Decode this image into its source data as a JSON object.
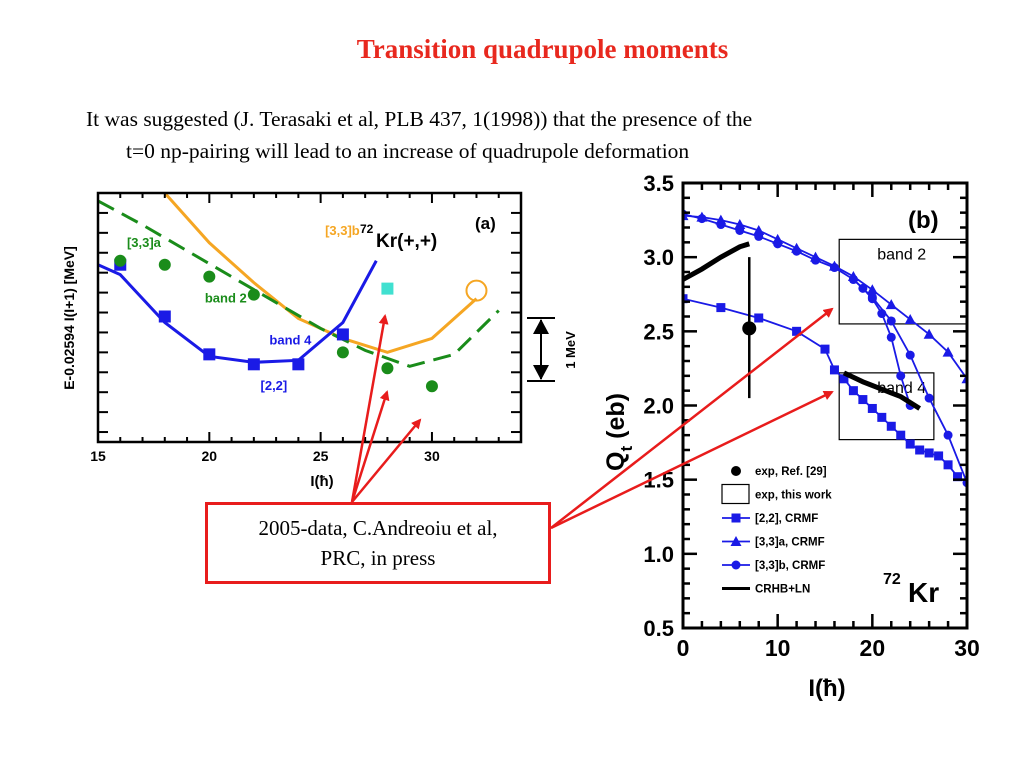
{
  "slide": {
    "title": "Transition quadrupole moments",
    "intro_line1": "It was suggested (J. Terasaki et al, PLB 437, 1(1998)) that the presence of the",
    "intro_line2": "t=0 np-pairing will lead to  an increase of quadrupole deformation",
    "callout_line1": "2005-data, C.Andreoiu et al,",
    "callout_line2": "PRC, in press",
    "arrow_color": "#e81c1c"
  },
  "chart_data": [
    {
      "type": "line",
      "panel_label": "(a)",
      "nucleus_mass": "72",
      "nucleus_label": "Kr(+,+)",
      "xlabel": "I(ħ)",
      "ylabel": "E-0.02594 I(I+1) [MeV]",
      "xlim": [
        15,
        34
      ],
      "ylim": [
        0,
        1.25
      ],
      "xticks": [
        15,
        20,
        25,
        30
      ],
      "scale_bar_label": "1 MeV",
      "scale_bar_mev": 1,
      "colors": {
        "blue": "#1a1ae6",
        "green": "#1a8c1a",
        "orange": "#f5a623",
        "cyan": "#40e0d0"
      },
      "series": [
        {
          "name": "[3,3]b",
          "style": "solid",
          "color": "#f5a623",
          "x": [
            18,
            20,
            22,
            24,
            26,
            28,
            30,
            32
          ],
          "y": [
            1.25,
            1.0,
            0.8,
            0.62,
            0.52,
            0.45,
            0.52,
            0.72
          ]
        },
        {
          "name": "[3,3]a",
          "style": "dashed",
          "color": "#1a8c1a",
          "x": [
            15,
            17,
            19,
            21,
            23,
            25,
            27,
            29,
            31,
            33
          ],
          "y": [
            1.21,
            1.09,
            0.96,
            0.83,
            0.7,
            0.57,
            0.46,
            0.38,
            0.44,
            0.66
          ]
        },
        {
          "name": "band 4",
          "style": "solid",
          "color": "#1a1ae6",
          "x": [
            15,
            16,
            18,
            20,
            22,
            24,
            26,
            27.5
          ],
          "y": [
            0.89,
            0.84,
            0.6,
            0.43,
            0.4,
            0.41,
            0.6,
            0.91
          ]
        },
        {
          "name": "[2,2] points",
          "style": "square",
          "color": "#1a1ae6",
          "x": [
            16,
            18,
            20,
            22,
            24,
            26
          ],
          "y": [
            0.89,
            0.63,
            0.44,
            0.39,
            0.39,
            0.54
          ]
        },
        {
          "name": "band 2 points",
          "style": "circle",
          "color": "#1a8c1a",
          "x": [
            16,
            18,
            20,
            22,
            26,
            28,
            30
          ],
          "y": [
            0.91,
            0.89,
            0.83,
            0.74,
            0.45,
            0.37,
            0.28
          ]
        },
        {
          "name": "cyan square",
          "style": "square",
          "color": "#40e0d0",
          "x": [
            28
          ],
          "y": [
            0.77
          ]
        },
        {
          "name": "open circle",
          "style": "open-circle",
          "color": "#f5a623",
          "x": [
            32
          ],
          "y": [
            0.76
          ]
        }
      ],
      "annotations": [
        {
          "text": "[3,3]a",
          "color": "#1a8c1a",
          "x": 16.3,
          "y": 0.98
        },
        {
          "text": "[3,3]b",
          "color": "#f5a623",
          "x": 25.2,
          "y": 1.04
        },
        {
          "text": "band 2",
          "color": "#1a8c1a",
          "x": 19.8,
          "y": 0.7
        },
        {
          "text": "band 4",
          "color": "#1a1ae6",
          "x": 22.7,
          "y": 0.49
        },
        {
          "text": "[2,2]",
          "color": "#1a1ae6",
          "x": 22.3,
          "y": 0.26
        }
      ]
    },
    {
      "type": "line",
      "panel_label": "(b)",
      "nucleus_mass": "72",
      "nucleus_label": "Kr",
      "xlabel": "I(ħ)",
      "ylabel_main": "Q",
      "ylabel_sub": "t",
      "ylabel_rest": " (eb)",
      "xlim": [
        0,
        30
      ],
      "ylim": [
        0.5,
        3.5
      ],
      "xticks": [
        0,
        10,
        20,
        30
      ],
      "yticks": [
        0.5,
        1.0,
        1.5,
        2.0,
        2.5,
        3.0,
        3.5
      ],
      "ytick_labels": [
        "0.5",
        "1.0",
        "1.5",
        "2.0",
        "2.5",
        "3.0",
        "3.5"
      ],
      "boxes": [
        {
          "label": "band 2",
          "x0": 16.5,
          "x1": 30,
          "y0": 2.55,
          "y1": 3.12
        },
        {
          "label": "band 4",
          "x0": 16.5,
          "x1": 26.5,
          "y0": 1.77,
          "y1": 2.22
        }
      ],
      "series": [
        {
          "name": "[3,3]a, CRMF",
          "marker": "triangle",
          "color": "#1a1ae6",
          "x": [
            0,
            2,
            4,
            6,
            8,
            10,
            12,
            14,
            16,
            18,
            20,
            22,
            24,
            26,
            28,
            30
          ],
          "y": [
            3.28,
            3.27,
            3.25,
            3.22,
            3.18,
            3.12,
            3.06,
            3.0,
            2.94,
            2.87,
            2.78,
            2.68,
            2.58,
            2.48,
            2.36,
            2.18
          ]
        },
        {
          "name": "[3,3]b, CRMF",
          "marker": "circle",
          "color": "#1a1ae6",
          "x": [
            0,
            2,
            4,
            6,
            8,
            10,
            12,
            14,
            16,
            18,
            20,
            22,
            24,
            26,
            28,
            30
          ],
          "y": [
            3.29,
            3.26,
            3.22,
            3.18,
            3.14,
            3.09,
            3.04,
            2.98,
            2.93,
            2.85,
            2.73,
            2.57,
            2.34,
            2.05,
            1.8,
            1.48
          ]
        },
        {
          "name": "band 2 branch",
          "marker": "circle",
          "color": "#1a1ae6",
          "x": [
            18,
            19,
            20,
            21,
            22,
            23,
            24
          ],
          "y": [
            2.85,
            2.79,
            2.72,
            2.62,
            2.46,
            2.2,
            2.0
          ]
        },
        {
          "name": "[2,2], CRMF",
          "marker": "square",
          "color": "#1a1ae6",
          "x": [
            0,
            4,
            8,
            12,
            15,
            16,
            17,
            18,
            19,
            20,
            21,
            22,
            23,
            24,
            25,
            26,
            27,
            28,
            29
          ],
          "y": [
            2.72,
            2.66,
            2.59,
            2.5,
            2.38,
            2.24,
            2.18,
            2.1,
            2.04,
            1.98,
            1.92,
            1.86,
            1.8,
            1.74,
            1.7,
            1.68,
            1.66,
            1.6,
            1.52
          ]
        },
        {
          "name": "CRHB+LN",
          "marker": "none",
          "color": "#000000",
          "x": [
            0,
            2,
            4,
            6,
            7
          ],
          "y": [
            2.85,
            2.92,
            3.0,
            3.07,
            3.09
          ]
        },
        {
          "name": "CRHB+LN band 4",
          "marker": "none",
          "color": "#000000",
          "x": [
            17,
            19,
            21,
            23,
            25
          ],
          "y": [
            2.22,
            2.16,
            2.11,
            2.06,
            1.98
          ]
        },
        {
          "name": "exp, Ref. [29]",
          "marker": "filled-circle",
          "color": "#000000",
          "x": [
            7
          ],
          "y": [
            2.52
          ],
          "err_low": [
            2.05
          ],
          "err_high": [
            3.0
          ]
        }
      ],
      "legend": [
        {
          "label": "exp, Ref. [29]",
          "symbol": "filled-circle"
        },
        {
          "label": "exp, this work",
          "symbol": "open-box"
        },
        {
          "label": "[2,2], CRMF",
          "symbol": "square-line"
        },
        {
          "label": "[3,3]a, CRMF",
          "symbol": "triangle-line"
        },
        {
          "label": "[3,3]b, CRMF",
          "symbol": "circle-line"
        },
        {
          "label": "CRHB+LN",
          "symbol": "line"
        }
      ]
    }
  ]
}
